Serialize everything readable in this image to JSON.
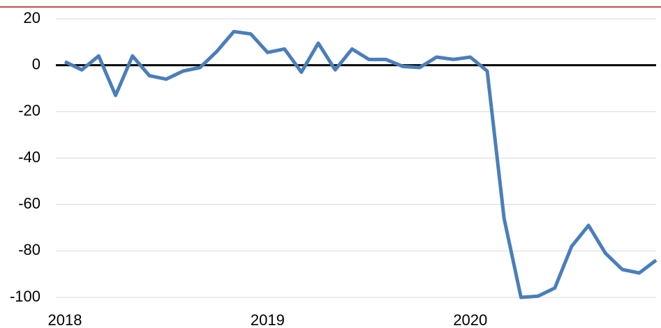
{
  "chart_data": {
    "type": "line",
    "categories": [
      "2018",
      null,
      null,
      null,
      null,
      null,
      null,
      null,
      null,
      null,
      null,
      null,
      "2019",
      null,
      null,
      null,
      null,
      null,
      null,
      null,
      null,
      null,
      null,
      null,
      "2020",
      null,
      null,
      null,
      null,
      null,
      null,
      null,
      null,
      null,
      null,
      null
    ],
    "series": [
      {
        "color": "#4a7ebb",
        "values": [
          1.5,
          -2,
          4,
          -13,
          4,
          -4.5,
          -6,
          -2.5,
          -1,
          6,
          14.5,
          13.5,
          5.5,
          7,
          -3,
          9.5,
          -2,
          7,
          2.5,
          2.5,
          -0.5,
          -1,
          3.5,
          2.5,
          3.5,
          -2.5,
          -66,
          -100,
          -99.5,
          -96,
          -78,
          -69,
          -81,
          -88,
          -89.5,
          -84
        ]
      }
    ],
    "ylim": [
      -100,
      20
    ],
    "yticks": [
      -100,
      -80,
      -60,
      -40,
      -20,
      0,
      20
    ],
    "grid": true
  }
}
